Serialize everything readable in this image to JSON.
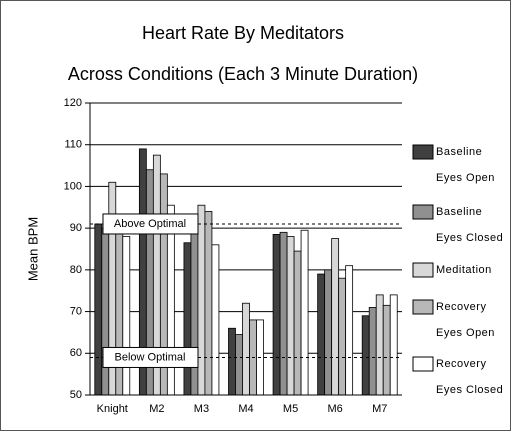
{
  "chart_data": {
    "type": "bar",
    "title": "Heart Rate By Meditators",
    "subtitle": "Across Conditions (Each 3 Minute Duration)",
    "y_label": "Mean BPM",
    "categories": [
      "Knight",
      "M2",
      "M3",
      "M4",
      "M5",
      "M6",
      "M7"
    ],
    "series": [
      {
        "name": "Baseline Eyes Open",
        "color": "#404040",
        "values": [
          91,
          109,
          86.5,
          66,
          88.5,
          79,
          69
        ]
      },
      {
        "name": "Baseline Eyes Closed",
        "color": "#909090",
        "values": [
          90,
          104,
          89,
          64.5,
          89,
          80,
          71
        ]
      },
      {
        "name": "Meditation",
        "color": "#d8d8d8",
        "values": [
          101,
          107.5,
          95.5,
          72,
          88,
          87.5,
          74
        ]
      },
      {
        "name": "Recovery Eyes Open",
        "color": "#b8b8b8",
        "values": [
          89,
          103,
          94,
          68,
          84.5,
          78,
          71.5
        ]
      },
      {
        "name": "Recovery Eyes Closed",
        "color": "#ffffff",
        "values": [
          88,
          95.5,
          86,
          68,
          89.5,
          81,
          74
        ]
      }
    ],
    "annotations": [
      {
        "label": "Above Optimal",
        "value": 91
      },
      {
        "label": "Below Optimal",
        "value": 59
      }
    ],
    "ylim": [
      50,
      120
    ],
    "yticks": [
      50,
      60,
      70,
      80,
      90,
      100,
      110,
      120
    ],
    "grid": true,
    "legend": "right"
  }
}
